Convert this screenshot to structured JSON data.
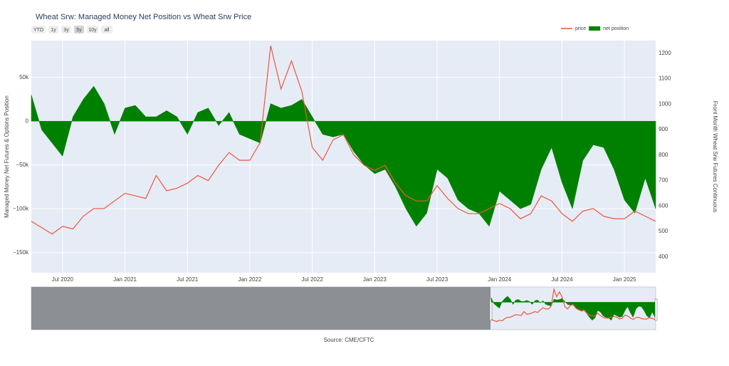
{
  "chart_data": {
    "type": "area-line",
    "title": "Wheat Srw: Managed Money Net Position vs Wheat Srw Price",
    "range_buttons": [
      "YTD",
      "1y",
      "3y",
      "5y",
      "10y",
      "all"
    ],
    "y_label": "Managed Money Net Futures & Options Position",
    "y2_label": "Front Month Wheat Srw Futures Continuous",
    "source": "Source: CME/CFTC",
    "legend_position": "top-right",
    "grid": true,
    "x": [
      "2020-04",
      "2020-05",
      "2020-06",
      "2020-07",
      "2020-08",
      "2020-09",
      "2020-10",
      "2020-11",
      "2020-12",
      "2021-01",
      "2021-02",
      "2021-03",
      "2021-04",
      "2021-05",
      "2021-06",
      "2021-07",
      "2021-08",
      "2021-09",
      "2021-10",
      "2021-11",
      "2021-12",
      "2022-01",
      "2022-02",
      "2022-03",
      "2022-04",
      "2022-05",
      "2022-06",
      "2022-07",
      "2022-08",
      "2022-09",
      "2022-10",
      "2022-11",
      "2022-12",
      "2023-01",
      "2023-02",
      "2023-03",
      "2023-04",
      "2023-05",
      "2023-06",
      "2023-07",
      "2023-08",
      "2023-09",
      "2023-10",
      "2023-11",
      "2023-12",
      "2024-01",
      "2024-02",
      "2024-03",
      "2024-04",
      "2024-05",
      "2024-06",
      "2024-07",
      "2024-08",
      "2024-09",
      "2024-10",
      "2024-11",
      "2024-12",
      "2025-01",
      "2025-02",
      "2025-03",
      "2025-04"
    ],
    "series": [
      {
        "name": "price",
        "color": "#ef553b",
        "axis": "y2",
        "style": "line",
        "values": [
          540,
          515,
          490,
          520,
          510,
          560,
          590,
          590,
          620,
          650,
          640,
          630,
          720,
          660,
          670,
          690,
          720,
          700,
          760,
          810,
          780,
          780,
          850,
          1230,
          1060,
          1170,
          1050,
          830,
          780,
          860,
          880,
          800,
          760,
          740,
          760,
          690,
          640,
          620,
          620,
          680,
          630,
          590,
          570,
          570,
          590,
          610,
          590,
          550,
          570,
          640,
          620,
          570,
          540,
          580,
          590,
          560,
          550,
          550,
          580,
          560,
          540
        ]
      },
      {
        "name": "net position",
        "color": "#008000",
        "axis": "y",
        "style": "area",
        "values": [
          30000,
          -10000,
          -25000,
          -40000,
          5000,
          25000,
          40000,
          20000,
          -15000,
          15000,
          18000,
          5000,
          5000,
          12000,
          5000,
          -15000,
          10000,
          15000,
          -5000,
          10000,
          -15000,
          -20000,
          -25000,
          20000,
          15000,
          18000,
          25000,
          5000,
          -15000,
          -18000,
          -15000,
          -35000,
          -50000,
          -60000,
          -55000,
          -75000,
          -100000,
          -120000,
          -105000,
          -55000,
          -65000,
          -90000,
          -100000,
          -105000,
          -120000,
          -80000,
          -90000,
          -100000,
          -95000,
          -55000,
          -30000,
          -70000,
          -100000,
          -45000,
          -27000,
          -30000,
          -55000,
          -90000,
          -105000,
          -65000,
          -100000
        ]
      }
    ],
    "xlim": [
      "2020-04",
      "2025-04"
    ],
    "xticks": [
      {
        "value": "2020-07",
        "label": "Jul 2020"
      },
      {
        "value": "2021-01",
        "label": "Jan 2021"
      },
      {
        "value": "2021-07",
        "label": "Jul 2021"
      },
      {
        "value": "2022-01",
        "label": "Jan 2022"
      },
      {
        "value": "2022-07",
        "label": "Jul 2022"
      },
      {
        "value": "2023-01",
        "label": "Jan 2023"
      },
      {
        "value": "2023-07",
        "label": "Jul 2023"
      },
      {
        "value": "2024-01",
        "label": "Jan 2024"
      },
      {
        "value": "2024-07",
        "label": "Jul 2024"
      },
      {
        "value": "2025-01",
        "label": "Jan 2025"
      }
    ],
    "ylim": [
      -173000,
      92000
    ],
    "yticks": [
      {
        "value": -150000,
        "label": "−150k"
      },
      {
        "value": -100000,
        "label": "−100k"
      },
      {
        "value": -50000,
        "label": "−50k"
      },
      0,
      {
        "value": 50000,
        "label": "50k"
      }
    ],
    "y2lim": [
      338,
      1250
    ],
    "y2ticks": [
      400,
      500,
      600,
      700,
      800,
      900,
      1000,
      1100,
      1200
    ]
  }
}
